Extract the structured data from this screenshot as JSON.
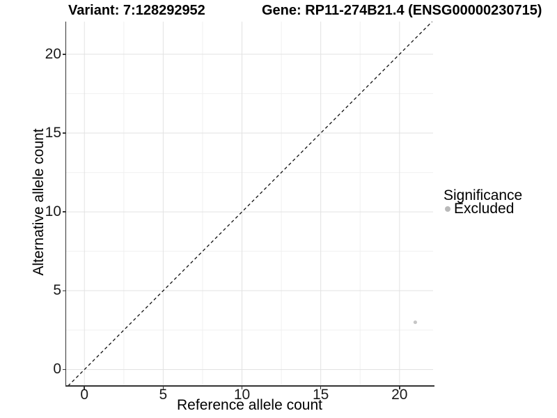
{
  "chart_data": {
    "type": "scatter",
    "title_left": "Variant: 7:128292952",
    "title_right": "Gene: RP11-274B21.4 (ENSG00000230715)",
    "xlabel": "Reference allele count",
    "ylabel": "Alternative allele count",
    "xlim": [
      -1.16,
      22.13
    ],
    "ylim": [
      -1.04,
      22.07
    ],
    "x_ticks": [
      0,
      5,
      10,
      15,
      20
    ],
    "y_ticks": [
      0,
      5,
      10,
      15,
      20
    ],
    "x_minor_gridlines": [
      2.5,
      7.5,
      12.5,
      17.5
    ],
    "y_minor_gridlines": [
      2.5,
      7.5,
      12.5,
      17.5
    ],
    "grid": true,
    "reference_line": {
      "kind": "identity",
      "slope": 1,
      "intercept": 0,
      "linetype": "dashed",
      "color": "#111111"
    },
    "points": [
      {
        "x": 21,
        "y": 3,
        "series": "Excluded"
      }
    ],
    "series": [
      {
        "name": "Excluded",
        "color": "#c6c6c6",
        "point_radius": 2.6
      }
    ],
    "legend": {
      "title": "Significance",
      "position": "right",
      "items": [
        {
          "label": "Excluded",
          "color": "#b9b9b9"
        }
      ]
    },
    "style": {
      "background": "#ffffff",
      "axis_line": "#333333",
      "tick_mark": "#333333",
      "tick_label_color": "#1a1a1a",
      "grid_major": "#e2e2e2",
      "grid_minor": "#f0f0f0"
    }
  }
}
